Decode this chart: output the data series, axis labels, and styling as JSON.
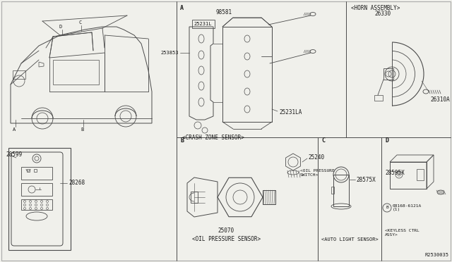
{
  "bg_color": "#f0f0eb",
  "line_color": "#4a4a4a",
  "text_color": "#1a1a1a",
  "fig_width": 6.4,
  "fig_height": 3.72,
  "dpi": 100,
  "labels": {
    "A_label": "A",
    "B_label": "B",
    "C_label": "C",
    "D_label": "D",
    "crash_zone": "<CRASH ZONE SENSOR>",
    "horn_assembly": "<HORN ASSEMBLY>",
    "oil_pressure_sensor": "<OIL PRESSURE SENSOR>",
    "oil_pressure_switch": "<OIL PRESSURE\nSWITCH>",
    "auto_light_sensor": "<AUTO LIGHT SENSOR>",
    "keyless_ctrl": "<KEYLESS CTRL\nASSY>",
    "part_98591": "98581",
    "part_25231L": "25231L",
    "part_253853": "253853",
    "part_25231LA": "25231LA",
    "part_26330": "26330",
    "part_26310A": "26310A",
    "part_28599": "28599",
    "part_28268": "28268",
    "part_25070": "25070",
    "part_25240": "25240",
    "part_28575X": "28575X",
    "part_28595X": "28595X",
    "part_08168": "08168-6121A\n(1)",
    "ref_R2530035": "R2530035"
  }
}
